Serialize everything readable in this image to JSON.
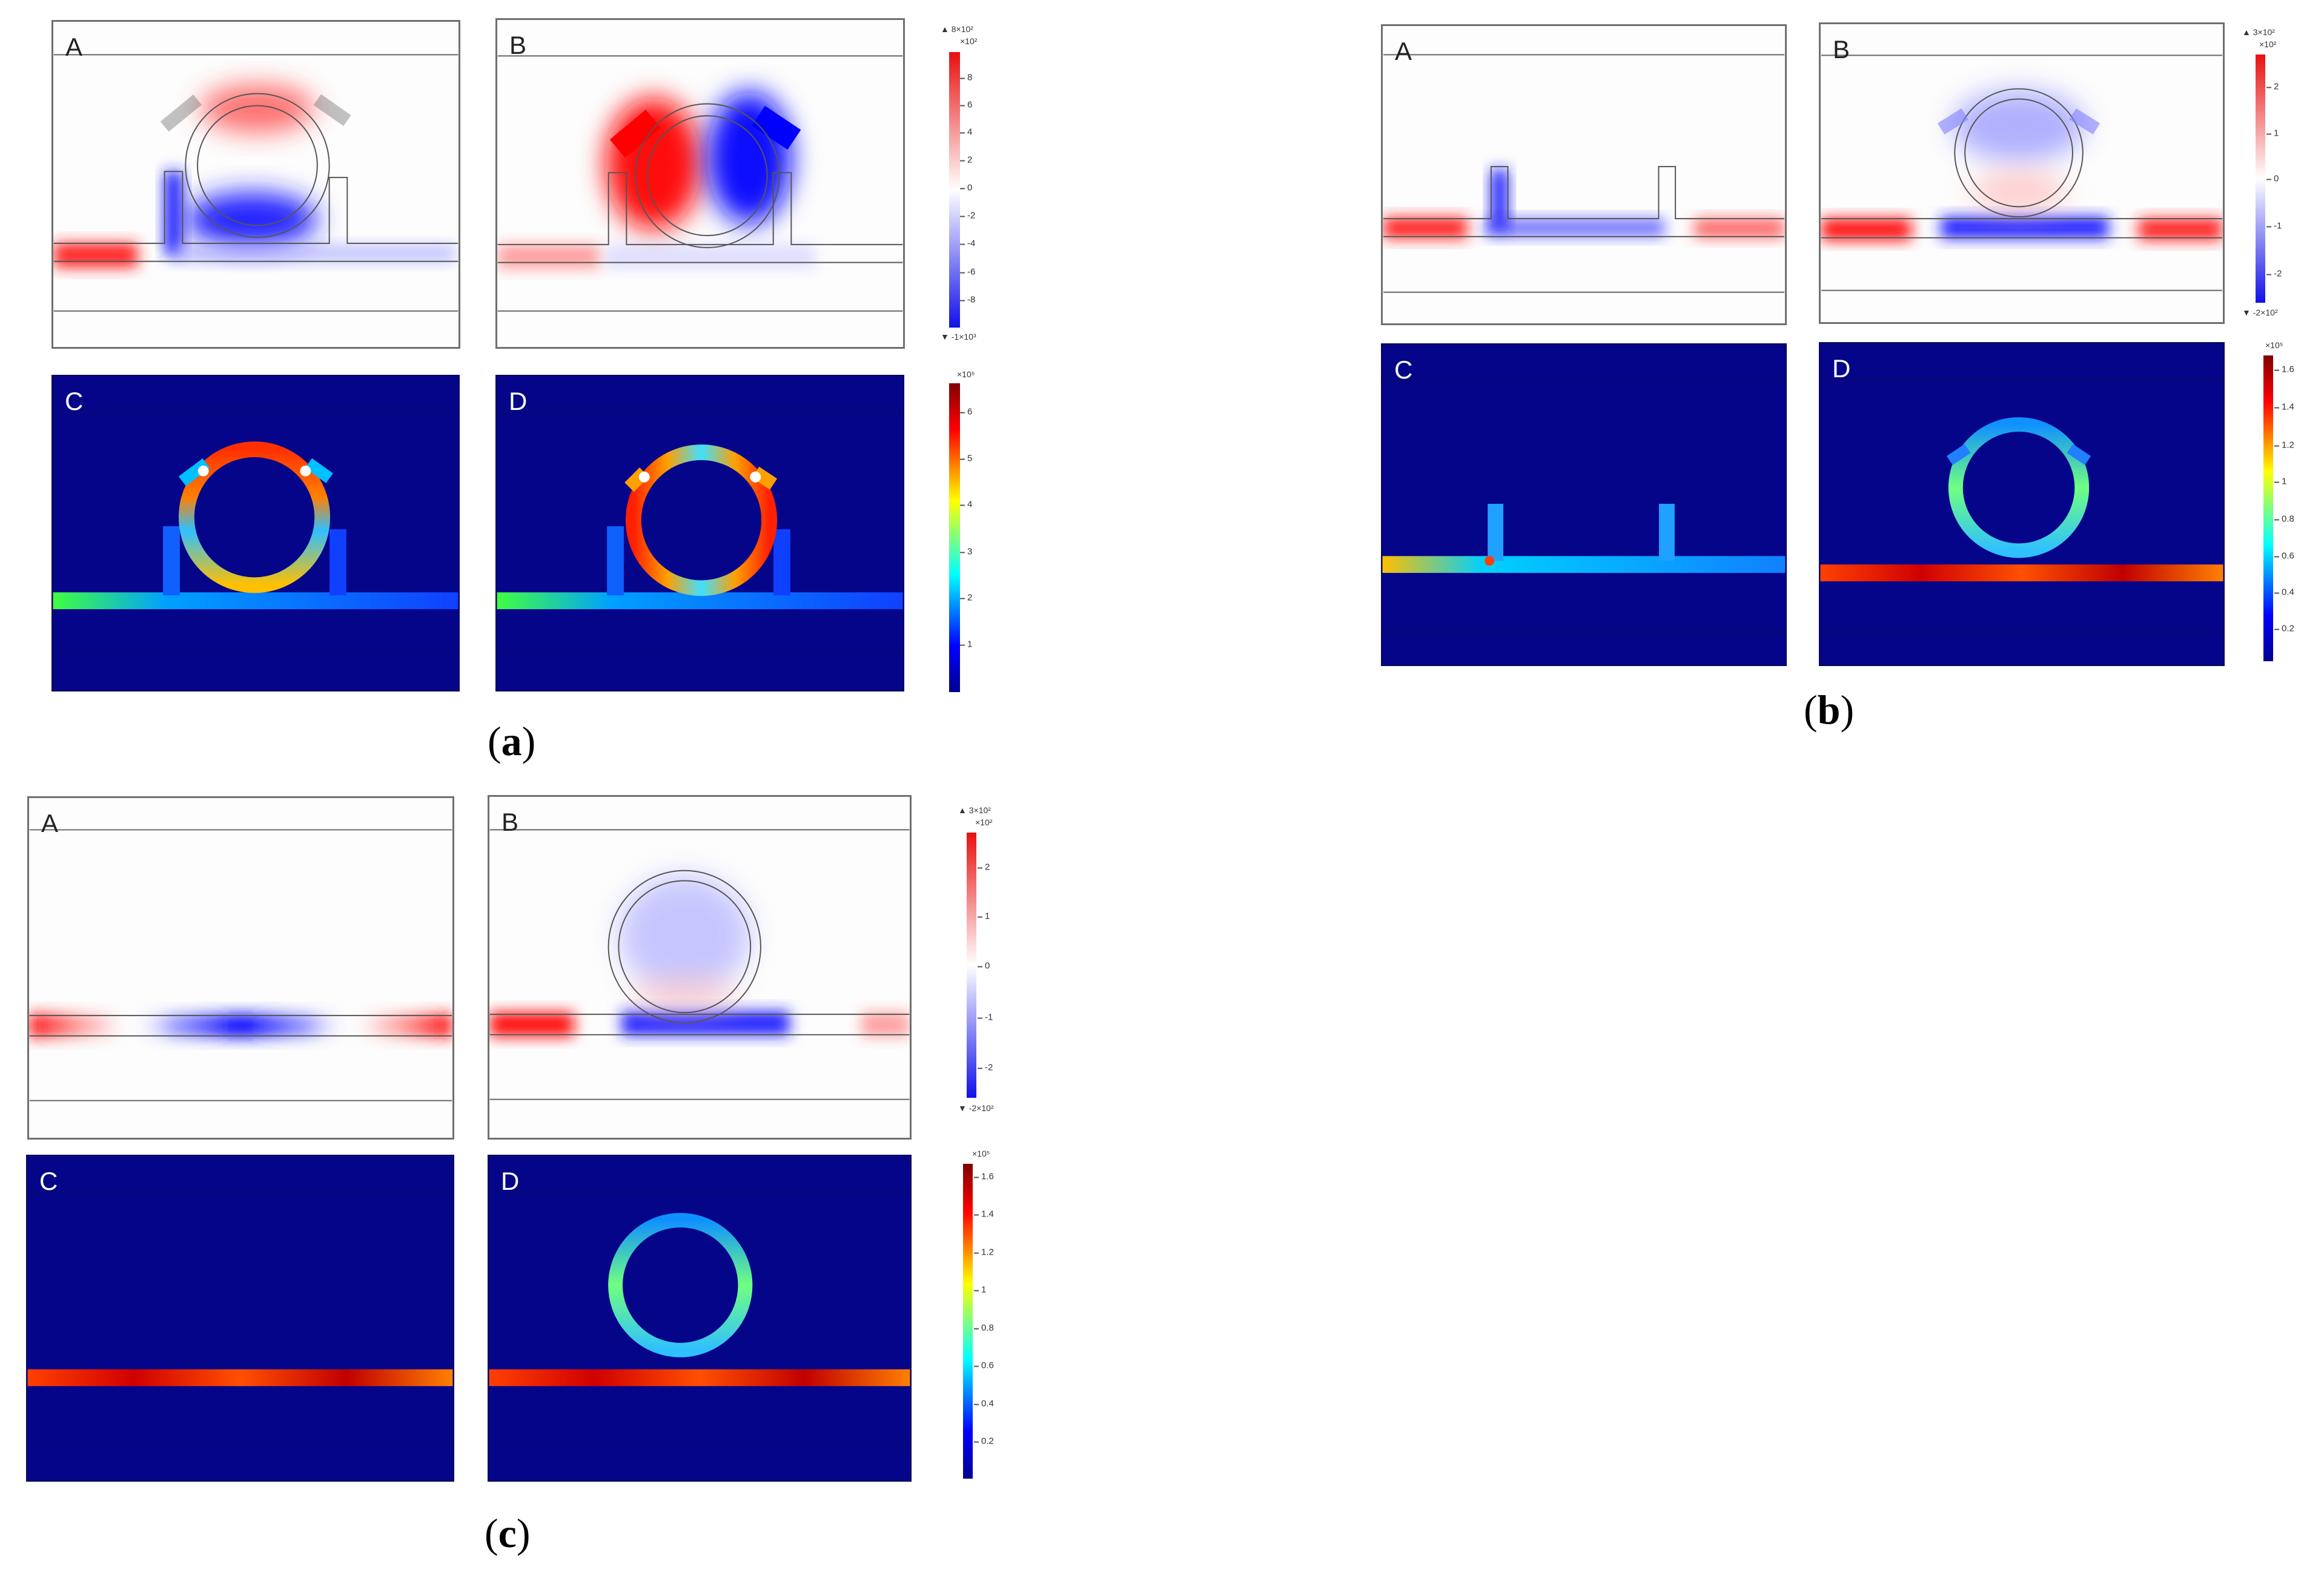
{
  "figure_a": {
    "label_open": "(",
    "label_letter": "a",
    "label_close": ")",
    "panels": [
      "A",
      "B",
      "C",
      "D"
    ],
    "field_colorbar": {
      "max": "▲ 8×10²",
      "exp": "×10²",
      "min": "▼ -1×10³",
      "ticks": [
        "8",
        "6",
        "4",
        "2",
        "0",
        "-2",
        "-4",
        "-6",
        "-8"
      ]
    },
    "norm_colorbar": {
      "exp": "×10⁵",
      "ticks": [
        "6",
        "5",
        "4",
        "3",
        "2",
        "1"
      ]
    }
  },
  "figure_b": {
    "label_open": "(",
    "label_letter": "b",
    "label_close": ")",
    "panels": [
      "A",
      "B",
      "C",
      "D"
    ],
    "field_colorbar": {
      "max": "▲ 3×10²",
      "exp": "×10²",
      "min": "▼ -2×10²",
      "ticks": [
        "2",
        "1",
        "0",
        "-1",
        "-2"
      ]
    },
    "norm_colorbar": {
      "exp": "×10⁵",
      "ticks": [
        "1.6",
        "1.4",
        "1.2",
        "1",
        "0.8",
        "0.6",
        "0.4",
        "0.2"
      ]
    }
  },
  "figure_c": {
    "label_open": "(",
    "label_letter": "c",
    "label_close": ")",
    "panels": [
      "A",
      "B",
      "C",
      "D"
    ],
    "field_colorbar": {
      "max": "▲ 3×10²",
      "exp": "×10²",
      "min": "▼ -2×10²",
      "ticks": [
        "2",
        "1",
        "0",
        "-1",
        "-2"
      ]
    },
    "norm_colorbar": {
      "exp": "×10⁵",
      "ticks": [
        "1.6",
        "1.4",
        "1.2",
        "1",
        "0.8",
        "0.6",
        "0.4",
        "0.2"
      ]
    }
  },
  "colors": {
    "red": "#ff2020",
    "blue": "#1a1aff",
    "dark_bg": "#05058a"
  }
}
